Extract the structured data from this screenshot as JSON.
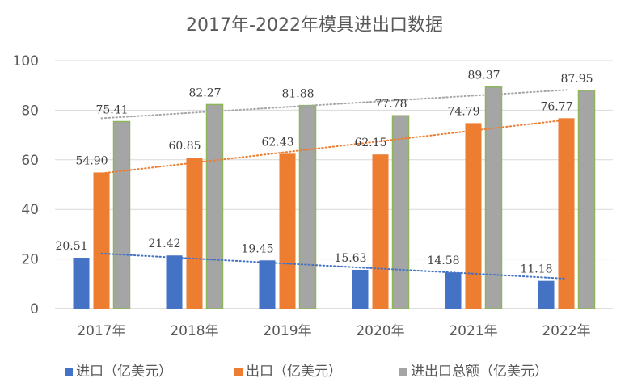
{
  "chart_data": {
    "type": "bar",
    "title": "2017年-2022年模具进出口数据",
    "categories": [
      "2017年",
      "2018年",
      "2019年",
      "2020年",
      "2021年",
      "2022年"
    ],
    "ylim": [
      0,
      100
    ],
    "yticks": [
      0,
      20,
      40,
      60,
      80,
      100
    ],
    "grid": true,
    "legend_position": "bottom",
    "trendlines": true,
    "series": [
      {
        "name": "进口（亿美元）",
        "color": "#4472C4",
        "values": [
          20.51,
          21.42,
          19.45,
          15.63,
          14.58,
          11.18
        ]
      },
      {
        "name": "出口（亿美元）",
        "color": "#ED7D31",
        "values": [
          54.9,
          60.85,
          62.43,
          62.15,
          74.79,
          76.77
        ]
      },
      {
        "name": "进出口总额（亿美元）",
        "color": "#A5A5A5",
        "border": "#8DB65A",
        "values": [
          75.41,
          82.27,
          81.88,
          77.78,
          89.37,
          87.95
        ]
      }
    ]
  }
}
